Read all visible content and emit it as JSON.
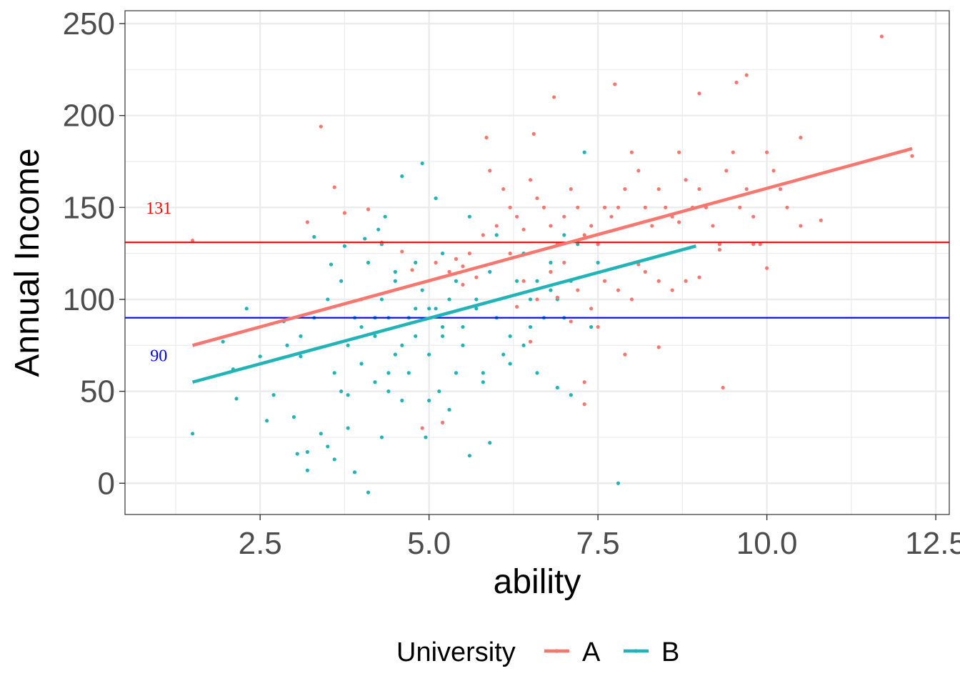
{
  "chart_data": {
    "type": "scatter",
    "xlabel": "ability",
    "ylabel": "Annual Income",
    "xlim": [
      0.5,
      12.7
    ],
    "ylim": [
      -17,
      257
    ],
    "x_ticks": [
      2.5,
      5.0,
      7.5,
      10.0,
      12.5
    ],
    "x_tick_labels": [
      "2.5",
      "5.0",
      "7.5",
      "10.0",
      "12.5"
    ],
    "y_ticks": [
      0,
      50,
      100,
      150,
      200,
      250
    ],
    "y_tick_labels": [
      "0",
      "50",
      "100",
      "150",
      "200",
      "250"
    ],
    "grid": true,
    "legend": {
      "title": "University",
      "position": "bottom",
      "entries": [
        "A",
        "B"
      ]
    },
    "colors": {
      "A": "#f8766d",
      "B": "#1fb4b7",
      "ref_high": "#ff0000",
      "ref_low": "#0000ff"
    },
    "series": [
      {
        "name": "A",
        "fit": {
          "x": [
            1.5,
            12.15
          ],
          "y": [
            75,
            182
          ]
        },
        "points": [
          [
            1.5,
            132
          ],
          [
            3.4,
            194
          ],
          [
            3.6,
            161
          ],
          [
            3.2,
            142
          ],
          [
            3.75,
            147
          ],
          [
            4.1,
            149
          ],
          [
            4.3,
            131
          ],
          [
            4.6,
            126
          ],
          [
            4.9,
            30
          ],
          [
            4.75,
            116
          ],
          [
            5.1,
            120
          ],
          [
            5.3,
            115
          ],
          [
            5.4,
            122
          ],
          [
            5.5,
            118
          ],
          [
            5.6,
            125
          ],
          [
            5.7,
            112
          ],
          [
            5.8,
            135
          ],
          [
            5.9,
            170
          ],
          [
            6.0,
            140
          ],
          [
            6.1,
            160
          ],
          [
            6.2,
            150
          ],
          [
            6.3,
            145
          ],
          [
            6.4,
            138
          ],
          [
            6.5,
            165
          ],
          [
            6.6,
            155
          ],
          [
            6.7,
            150
          ],
          [
            6.8,
            140
          ],
          [
            6.9,
            130
          ],
          [
            7.0,
            145
          ],
          [
            7.1,
            160
          ],
          [
            7.2,
            150
          ],
          [
            7.3,
            135
          ],
          [
            7.4,
            140
          ],
          [
            7.5,
            130
          ],
          [
            7.6,
            150
          ],
          [
            7.7,
            145
          ],
          [
            7.8,
            150
          ],
          [
            7.9,
            160
          ],
          [
            8.0,
            180
          ],
          [
            8.1,
            170
          ],
          [
            8.2,
            150
          ],
          [
            8.3,
            140
          ],
          [
            8.4,
            160
          ],
          [
            8.5,
            150
          ],
          [
            8.6,
            145
          ],
          [
            8.7,
            180
          ],
          [
            8.8,
            165
          ],
          [
            8.9,
            150
          ],
          [
            9.0,
            160
          ],
          [
            9.1,
            150
          ],
          [
            9.2,
            140
          ],
          [
            9.3,
            130
          ],
          [
            9.4,
            170
          ],
          [
            9.5,
            180
          ],
          [
            9.6,
            150
          ],
          [
            9.7,
            160
          ],
          [
            9.8,
            145
          ],
          [
            9.9,
            130
          ],
          [
            10.0,
            180
          ],
          [
            10.1,
            170
          ],
          [
            10.2,
            160
          ],
          [
            10.3,
            150
          ],
          [
            10.5,
            188
          ],
          [
            10.5,
            140
          ],
          [
            10.8,
            143
          ],
          [
            11.7,
            243
          ],
          [
            12.15,
            178
          ],
          [
            9.35,
            52
          ],
          [
            9.55,
            218
          ],
          [
            9.7,
            222
          ],
          [
            9.0,
            212
          ],
          [
            7.75,
            217
          ],
          [
            6.85,
            210
          ],
          [
            7.3,
            55
          ],
          [
            6.55,
            190
          ],
          [
            5.85,
            188
          ],
          [
            5.2,
            33
          ],
          [
            6.2,
            125
          ],
          [
            6.4,
            110
          ],
          [
            6.6,
            100
          ],
          [
            6.8,
            115
          ],
          [
            7.0,
            120
          ],
          [
            7.2,
            105
          ],
          [
            7.4,
            95
          ],
          [
            7.6,
            110
          ],
          [
            7.8,
            105
          ],
          [
            8.0,
            100
          ],
          [
            8.2,
            115
          ],
          [
            8.4,
            110
          ],
          [
            8.6,
            105
          ],
          [
            8.8,
            110
          ],
          [
            7.9,
            70
          ],
          [
            8.4,
            74
          ],
          [
            10.0,
            117
          ],
          [
            9.8,
            130
          ],
          [
            9.3,
            127
          ],
          [
            9.0,
            112
          ],
          [
            8.1,
            119
          ],
          [
            7.5,
            85
          ],
          [
            7.3,
            43
          ],
          [
            6.5,
            77
          ],
          [
            6.9,
            101
          ],
          [
            5.5,
            108
          ],
          [
            6.3,
            96
          ],
          [
            7.1,
            88
          ],
          [
            8.7,
            142
          ]
        ]
      },
      {
        "name": "B",
        "fit": {
          "x": [
            1.5,
            8.95
          ],
          "y": [
            55,
            129
          ]
        },
        "points": [
          [
            1.5,
            27
          ],
          [
            1.95,
            77
          ],
          [
            2.1,
            62
          ],
          [
            2.15,
            46
          ],
          [
            2.3,
            95
          ],
          [
            2.5,
            69
          ],
          [
            2.6,
            34
          ],
          [
            2.7,
            48
          ],
          [
            2.85,
            88
          ],
          [
            3.0,
            36
          ],
          [
            3.05,
            16
          ],
          [
            3.1,
            69
          ],
          [
            3.2,
            17
          ],
          [
            3.2,
            7
          ],
          [
            3.3,
            134
          ],
          [
            3.4,
            27
          ],
          [
            3.5,
            20
          ],
          [
            3.55,
            119
          ],
          [
            3.6,
            13
          ],
          [
            3.7,
            50
          ],
          [
            3.75,
            129
          ],
          [
            3.8,
            30
          ],
          [
            3.9,
            6
          ],
          [
            4.0,
            100
          ],
          [
            4.1,
            -5
          ],
          [
            4.2,
            80
          ],
          [
            4.3,
            25
          ],
          [
            4.35,
            145
          ],
          [
            4.4,
            90
          ],
          [
            4.5,
            70
          ],
          [
            4.6,
            167
          ],
          [
            4.7,
            60
          ],
          [
            4.8,
            80
          ],
          [
            4.9,
            174
          ],
          [
            4.95,
            25
          ],
          [
            5.0,
            95
          ],
          [
            5.1,
            155
          ],
          [
            5.15,
            50
          ],
          [
            5.2,
            85
          ],
          [
            5.3,
            40
          ],
          [
            5.4,
            110
          ],
          [
            5.5,
            75
          ],
          [
            5.6,
            15
          ],
          [
            5.7,
            100
          ],
          [
            5.8,
            60
          ],
          [
            5.9,
            22
          ],
          [
            6.0,
            90
          ],
          [
            6.1,
            70
          ],
          [
            6.2,
            80
          ],
          [
            6.3,
            110
          ],
          [
            6.4,
            75
          ],
          [
            6.5,
            100
          ],
          [
            6.6,
            110
          ],
          [
            6.7,
            90
          ],
          [
            6.8,
            105
          ],
          [
            6.9,
            100
          ],
          [
            7.0,
            90
          ],
          [
            7.1,
            110
          ],
          [
            7.2,
            130
          ],
          [
            7.3,
            180
          ],
          [
            7.4,
            85
          ],
          [
            7.5,
            120
          ],
          [
            7.8,
            0
          ],
          [
            4.3,
            100
          ],
          [
            4.5,
            110
          ],
          [
            4.7,
            90
          ],
          [
            4.9,
            105
          ],
          [
            5.1,
            95
          ],
          [
            5.3,
            100
          ],
          [
            5.5,
            85
          ],
          [
            5.7,
            95
          ],
          [
            5.9,
            115
          ],
          [
            3.8,
            75
          ],
          [
            4.0,
            85
          ],
          [
            4.2,
            90
          ],
          [
            4.4,
            60
          ],
          [
            4.6,
            75
          ],
          [
            4.8,
            95
          ],
          [
            5.0,
            70
          ],
          [
            5.2,
            80
          ],
          [
            3.5,
            100
          ],
          [
            3.7,
            110
          ],
          [
            3.9,
            90
          ],
          [
            4.1,
            120
          ],
          [
            4.3,
            130
          ],
          [
            4.5,
            115
          ],
          [
            3.6,
            60
          ],
          [
            3.8,
            48
          ],
          [
            4.0,
            65
          ],
          [
            4.2,
            55
          ],
          [
            4.4,
            50
          ],
          [
            4.6,
            45
          ],
          [
            5.0,
            45
          ],
          [
            5.4,
            60
          ],
          [
            5.8,
            55
          ],
          [
            6.2,
            65
          ],
          [
            6.6,
            60
          ],
          [
            6.9,
            52
          ],
          [
            7.1,
            48
          ],
          [
            6.0,
            135
          ],
          [
            5.6,
            145
          ],
          [
            5.2,
            125
          ],
          [
            4.8,
            120
          ],
          [
            6.4,
            125
          ],
          [
            6.8,
            120
          ],
          [
            7.0,
            135
          ],
          [
            6.5,
            85
          ],
          [
            3.3,
            90
          ],
          [
            3.1,
            80
          ],
          [
            2.9,
            75
          ],
          [
            4.25,
            138
          ],
          [
            4.05,
            133
          ]
        ]
      }
    ],
    "hlines": [
      {
        "y": 131,
        "label": "131",
        "color": "#ff0000"
      },
      {
        "y": 90,
        "label": "90",
        "color": "#0000ff"
      }
    ]
  }
}
